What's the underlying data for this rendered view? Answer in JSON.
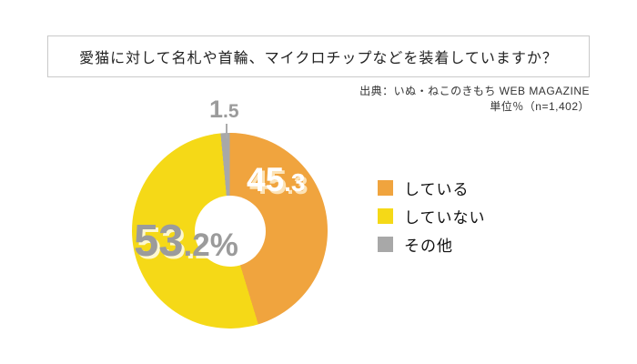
{
  "title": {
    "text": "愛猫に対して名札や首輪、マイクロチップなどを装着していますか？"
  },
  "source": {
    "line1": "出典：いぬ・ねこのきもち WEB MAGAZINE",
    "line2": "単位％（n=1,402）"
  },
  "chart_data": {
    "type": "pie",
    "subtype": "donut",
    "title": "愛猫に対して名札や首輪、マイクロチップなどを装着していますか？",
    "categories": [
      "している",
      "していない",
      "その他"
    ],
    "values": [
      45.3,
      53.2,
      1.5
    ],
    "unit": "％",
    "sample_size": "n=1,402",
    "colors": [
      "#F0A43E",
      "#F5D917",
      "#A8A8A8"
    ],
    "start_angle_deg": 0,
    "direction": "clockwise",
    "legend_position": "right",
    "slice_labels": [
      {
        "main": "45",
        "frac": ".3",
        "color": "#FFFFFF"
      },
      {
        "main": "53",
        "frac": ".2%",
        "color": "#9B9B9B"
      },
      {
        "main": "1",
        "frac": ".5",
        "color": "#9B9B9B"
      }
    ]
  },
  "legend": {
    "items": [
      {
        "label": "している",
        "color": "#F0A43E"
      },
      {
        "label": "していない",
        "color": "#F5D917"
      },
      {
        "label": "その他",
        "color": "#A8A8A8"
      }
    ]
  }
}
